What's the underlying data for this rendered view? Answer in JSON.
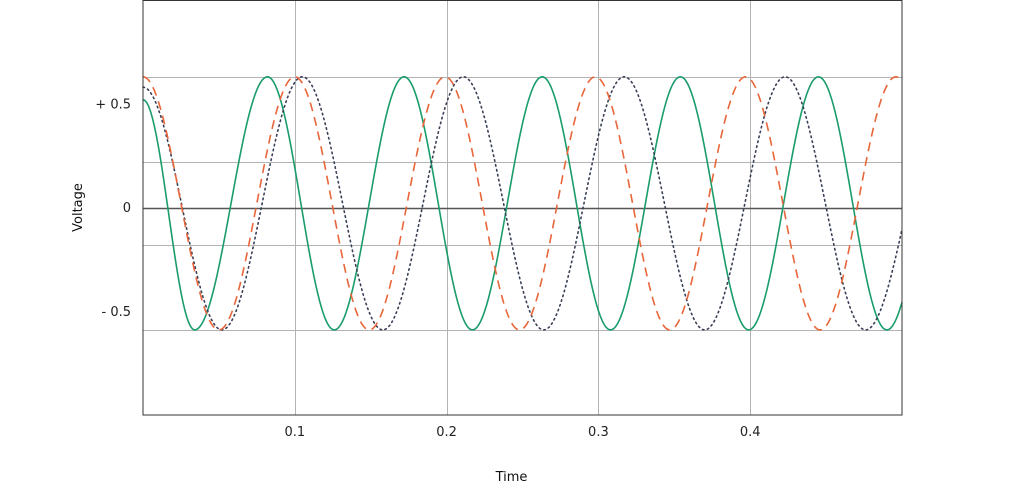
{
  "chart_data": {
    "type": "line",
    "xlabel": "Time",
    "ylabel": "Voltage",
    "xlim": [
      0,
      0.5
    ],
    "ylim": [
      -1.0,
      1.0
    ],
    "x_ticks": [
      {
        "value": 0.1,
        "label": "0.1"
      },
      {
        "value": 0.2,
        "label": "0.2"
      },
      {
        "value": 0.3,
        "label": "0.3"
      },
      {
        "value": 0.4,
        "label": "0.4"
      }
    ],
    "y_ticks": [
      {
        "value": 0.5,
        "label": "+ 0.5"
      },
      {
        "value": 0,
        "label": "0"
      },
      {
        "value": -0.5,
        "label": "- 0.5"
      }
    ],
    "y_gridlines": [
      0.63,
      0.22,
      -0.18,
      -0.59
    ],
    "grid": true,
    "legend": "none",
    "series": [
      {
        "style": "solid",
        "color": "#1a9c6b",
        "amplitude": 0.61,
        "frequency_hz": 11.0,
        "x": [
          0.0,
          0.034,
          0.082,
          0.126,
          0.172,
          0.217,
          0.263,
          0.308,
          0.354,
          0.399,
          0.445,
          0.49
        ],
        "y": [
          0.52,
          -0.59,
          0.63,
          -0.59,
          0.63,
          -0.59,
          0.63,
          -0.59,
          0.63,
          -0.59,
          0.63,
          -0.59
        ]
      },
      {
        "style": "dotted",
        "color": "#3a3f58",
        "amplitude": 0.61,
        "frequency_hz": 9.4,
        "x": [
          0.0,
          0.052,
          0.105,
          0.158,
          0.211,
          0.264,
          0.317,
          0.37,
          0.423,
          0.476
        ],
        "y": [
          0.58,
          -0.59,
          0.63,
          -0.59,
          0.63,
          -0.59,
          0.63,
          -0.59,
          0.63,
          -0.59
        ]
      },
      {
        "style": "dashed",
        "color": "#e8663a",
        "amplitude": 0.61,
        "frequency_hz": 10.1,
        "x": [
          0.0,
          0.05,
          0.1,
          0.149,
          0.199,
          0.248,
          0.298,
          0.347,
          0.397,
          0.446,
          0.496
        ],
        "y": [
          0.63,
          -0.59,
          0.63,
          -0.59,
          0.63,
          -0.59,
          0.63,
          -0.59,
          0.63,
          -0.59,
          0.63
        ]
      }
    ]
  }
}
